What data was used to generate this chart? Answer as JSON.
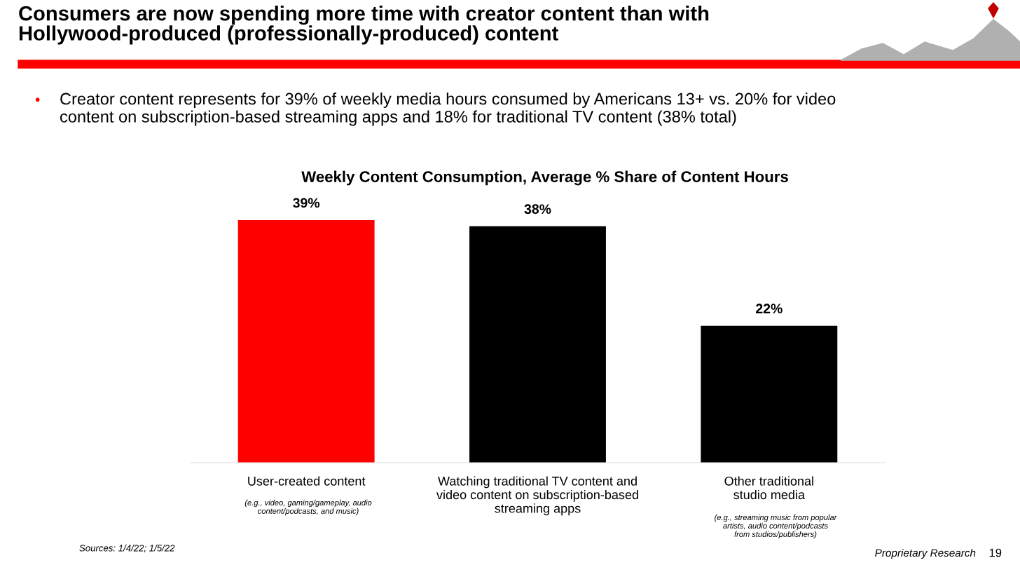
{
  "chart_data": {
    "type": "bar",
    "title": "Consumers are now spending more time with creator content than with\nHollywood-produced (professionally-produced) content",
    "subtitle": "Creator content represents for 39% of weekly media hours consumed by Americans 13+ vs. 20% for video\ncontent on subscription-based streaming apps and 18% for traditional TV content (38% total)",
    "categories": [
      "User-created content",
      "Watching traditional TV content and\nvideo content on subscription-based\nstreaming apps",
      "Other traditional\nstudio media"
    ],
    "values": [
      39,
      38,
      22
    ],
    "colors": [
      "#ff0000",
      "#000000",
      "#000000"
    ],
    "value_labels": [
      "39%",
      "38%",
      "22%"
    ],
    "grid": false,
    "legend": false,
    "annotations": [
      "Weekly Content Consumption, Average % Share of Content Hours",
      "(e.g., video, gaming/gameplay, audio\ncontent/podcasts, and music)",
      "(e.g., streaming music from popular\nartists, audio content/podcasts\nfrom studios/publishers)",
      "Sources: 1/4/22; 1/5/22",
      "Proprietary Research",
      "19",
      "•"
    ]
  }
}
